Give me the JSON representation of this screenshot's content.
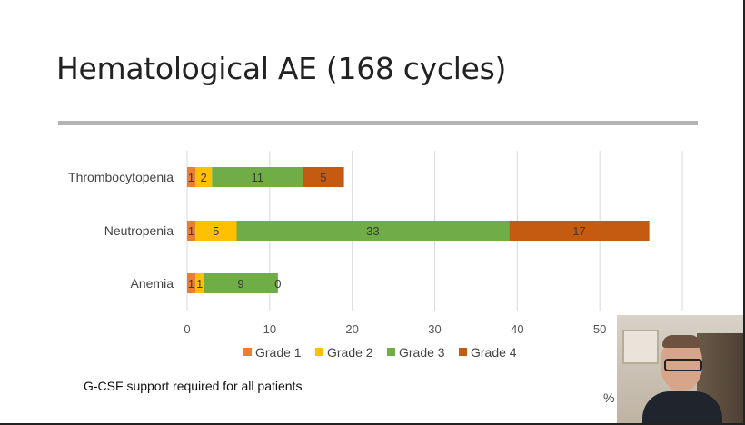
{
  "slide": {
    "title": "Hematological AE (168 cycles)",
    "footnote": "G-CSF support required for all patients",
    "corner_mark": "%"
  },
  "colors": {
    "grade1": "#ed7d31",
    "grade2": "#ffc000",
    "grade3": "#70ad47",
    "grade4": "#c55a11",
    "grid": "#d9d9d9",
    "rule": "#b3b3b3"
  },
  "chart_data": {
    "type": "bar",
    "orientation": "horizontal",
    "stacked": true,
    "categories": [
      "Thrombocytopenia",
      "Neutropenia",
      "Anemia"
    ],
    "series": [
      {
        "name": "Grade 1",
        "values": [
          1,
          1,
          1
        ],
        "labels": [
          "1",
          "1",
          "1"
        ]
      },
      {
        "name": "Grade 2",
        "values": [
          2,
          5,
          1
        ],
        "labels": [
          "2",
          "5",
          "1"
        ]
      },
      {
        "name": "Grade 3",
        "values": [
          11,
          33,
          9
        ],
        "labels": [
          "11",
          "33",
          "9"
        ]
      },
      {
        "name": "Grade 4",
        "values": [
          5,
          17,
          0
        ],
        "labels": [
          "5",
          "17",
          "0"
        ]
      }
    ],
    "xlim": [
      0,
      60
    ],
    "xticks": [
      0,
      10,
      20,
      30,
      40,
      50
    ],
    "grid": true,
    "legend_position": "bottom"
  }
}
